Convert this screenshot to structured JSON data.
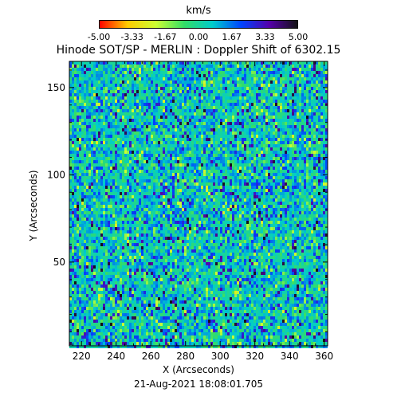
{
  "colorbar": {
    "unit": "km/s",
    "ticks": [
      "-5.00",
      "-3.33",
      "-1.67",
      "0.00",
      "1.67",
      "3.33",
      "5.00"
    ],
    "range": [
      -5.0,
      5.0
    ],
    "colors": [
      "#ff0000",
      "#ffcc00",
      "#ccff33",
      "#33dd66",
      "#00cccc",
      "#0044ff",
      "#5500aa",
      "#111111"
    ]
  },
  "chart_data": {
    "type": "heatmap",
    "title": "Hinode SOT/SP - MERLIN : Doppler Shift of 6302.15",
    "xlabel": "X (Arcseconds)",
    "ylabel": "Y (Arcseconds)",
    "xlim": [
      213,
      362
    ],
    "ylim": [
      2,
      165
    ],
    "xticks": [
      220,
      240,
      260,
      280,
      300,
      320,
      340,
      360
    ],
    "yticks": [
      50,
      100,
      150
    ],
    "value_range": [
      -5.0,
      5.0
    ],
    "value_unit": "km/s",
    "dominant_value": 0.5,
    "grid": false
  },
  "footer": {
    "timestamp": "21-Aug-2021 18:08:01.705"
  }
}
